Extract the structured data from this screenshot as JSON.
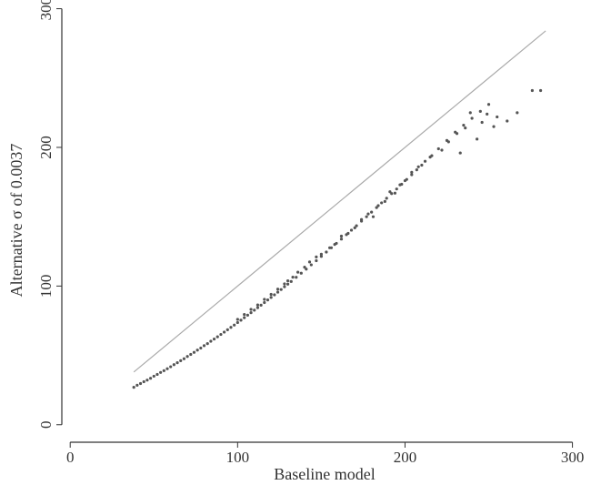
{
  "chart_data": {
    "type": "scatter",
    "title": "",
    "xlabel": "Baseline model",
    "ylabel": "Alternative σ of 0.0037",
    "xlim": [
      -5,
      310
    ],
    "ylim": [
      -10,
      303
    ],
    "x_ticks": [
      0,
      100,
      200,
      300
    ],
    "y_ticks": [
      0,
      100,
      200,
      300
    ],
    "x_tick_labels": [
      "0",
      "100",
      "200",
      "300"
    ],
    "y_tick_labels": [
      "0",
      "100",
      "200",
      "300"
    ],
    "grid": false,
    "legend": "none",
    "colors": {
      "points": "#555555",
      "reference_line": "#aaaaaa",
      "axis": "#333333"
    },
    "reference_line": {
      "x": [
        38,
        284
      ],
      "y": [
        38,
        284
      ],
      "label": ""
    },
    "series": [
      {
        "points": [
          [
            38,
            27
          ],
          [
            40,
            28.5
          ],
          [
            42,
            29.7
          ],
          [
            44,
            31
          ],
          [
            46,
            32.2
          ],
          [
            48,
            33.5
          ],
          [
            50,
            35
          ],
          [
            52,
            36.3
          ],
          [
            54,
            37.7
          ],
          [
            56,
            39
          ],
          [
            58,
            40.4
          ],
          [
            60,
            41.8
          ],
          [
            62,
            43.3
          ],
          [
            64,
            44.7
          ],
          [
            66,
            46.2
          ],
          [
            68,
            47.6
          ],
          [
            70,
            49.2
          ],
          [
            72,
            50.7
          ],
          [
            74,
            52.2
          ],
          [
            76,
            53.8
          ],
          [
            78,
            55.3
          ],
          [
            80,
            57
          ],
          [
            82,
            58.5
          ],
          [
            84,
            60.2
          ],
          [
            86,
            61.8
          ],
          [
            88,
            63.4
          ],
          [
            90,
            65.1
          ],
          [
            92,
            66.8
          ],
          [
            94,
            68.5
          ],
          [
            96,
            70.2
          ],
          [
            98,
            71.9
          ],
          [
            100,
            73.7
          ],
          [
            102,
            75.4
          ],
          [
            104,
            77.2
          ],
          [
            106,
            79
          ],
          [
            108,
            80.8
          ],
          [
            110,
            82.6
          ],
          [
            112,
            84.4
          ],
          [
            114,
            86.2
          ],
          [
            116,
            88.1
          ],
          [
            118,
            90
          ],
          [
            120,
            91.8
          ],
          [
            122,
            93.7
          ],
          [
            124,
            95.6
          ],
          [
            126,
            97.5
          ],
          [
            128,
            99.5
          ],
          [
            130,
            101.4
          ],
          [
            132,
            103.3
          ],
          [
            135,
            106.3
          ],
          [
            138,
            109.3
          ],
          [
            141,
            112.2
          ],
          [
            144,
            115.3
          ],
          [
            147,
            118.3
          ],
          [
            150,
            121.4
          ],
          [
            153,
            124.5
          ],
          [
            156,
            127.6
          ],
          [
            159,
            130.8
          ],
          [
            162,
            133.9
          ],
          [
            165,
            137.1
          ],
          [
            168,
            140.3
          ],
          [
            171,
            143.5
          ],
          [
            174,
            146.8
          ],
          [
            177,
            150
          ],
          [
            180,
            153.3
          ],
          [
            183,
            156.6
          ],
          [
            186,
            160
          ],
          [
            189,
            163.3
          ],
          [
            192,
            166.7
          ],
          [
            195,
            170
          ],
          [
            198,
            173.4
          ],
          [
            201,
            176.9
          ],
          [
            204,
            180.3
          ],
          [
            207,
            183.8
          ],
          [
            210,
            187.2
          ],
          [
            215,
            193
          ],
          [
            220,
            199
          ],
          [
            225,
            205
          ],
          [
            230,
            211
          ],
          [
            235,
            216
          ],
          [
            240,
            221
          ],
          [
            245,
            226
          ],
          [
            250,
            231
          ],
          [
            100,
            76
          ],
          [
            104,
            79.5
          ],
          [
            108,
            83.2
          ],
          [
            112,
            86.4
          ],
          [
            116,
            90.4
          ],
          [
            120,
            94
          ],
          [
            124,
            97.8
          ],
          [
            128,
            101.6
          ],
          [
            130,
            103.8
          ],
          [
            133,
            106.4
          ],
          [
            136,
            110
          ],
          [
            140,
            113.6
          ],
          [
            143,
            117.4
          ],
          [
            147,
            121
          ],
          [
            150,
            123
          ],
          [
            155,
            127.6
          ],
          [
            158,
            130
          ],
          [
            162,
            136
          ],
          [
            166,
            138
          ],
          [
            170,
            142
          ],
          [
            174,
            148
          ],
          [
            178,
            152
          ],
          [
            181,
            150
          ],
          [
            184,
            158
          ],
          [
            188,
            161
          ],
          [
            191,
            168
          ],
          [
            194,
            167
          ],
          [
            197,
            173
          ],
          [
            200,
            176
          ],
          [
            204,
            182
          ],
          [
            208,
            186
          ],
          [
            212,
            190
          ],
          [
            216,
            194
          ],
          [
            222,
            198
          ],
          [
            226,
            204
          ],
          [
            231,
            210
          ],
          [
            233,
            196
          ],
          [
            236,
            214
          ],
          [
            239,
            225
          ],
          [
            243,
            206
          ],
          [
            246,
            218
          ],
          [
            249,
            224
          ],
          [
            255,
            222
          ],
          [
            261,
            219
          ],
          [
            267,
            225
          ],
          [
            276,
            241
          ],
          [
            281,
            241
          ],
          [
            253,
            215
          ]
        ]
      }
    ]
  }
}
